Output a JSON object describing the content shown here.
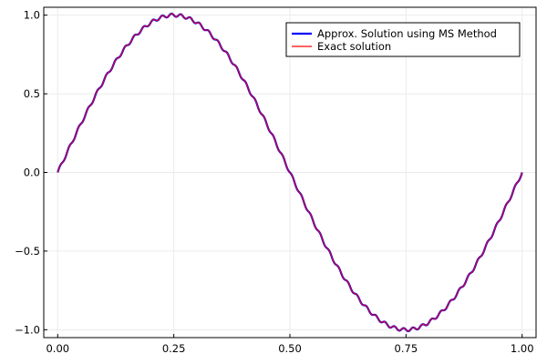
{
  "chart_data": {
    "type": "line",
    "title": "",
    "xlabel": "",
    "ylabel": "",
    "xlim": [
      -0.03,
      1.03
    ],
    "ylim": [
      -1.05,
      1.05
    ],
    "xticks": [
      0.0,
      0.25,
      0.5,
      0.75,
      1.0
    ],
    "xtick_labels": [
      "0.00",
      "0.25",
      "0.50",
      "0.75",
      "1.00"
    ],
    "yticks": [
      -1.0,
      -0.5,
      0.0,
      0.5,
      1.0
    ],
    "ytick_labels": [
      "−1.0",
      "−0.5",
      "0.0",
      "0.5",
      "1.0"
    ],
    "grid": true,
    "legend_position": "top-right",
    "series": [
      {
        "name": "Approx. Solution using MS Method",
        "color": "#0000ff",
        "function": "sin(2*pi*x) + 0.01*sin(100*pi*x)",
        "x_range": [
          0,
          1
        ]
      },
      {
        "name": "Exact solution",
        "color": "#ff0000",
        "function": "sin(2*pi*x) + 0.01*sin(100*pi*x)",
        "x_range": [
          0,
          1
        ]
      }
    ]
  }
}
